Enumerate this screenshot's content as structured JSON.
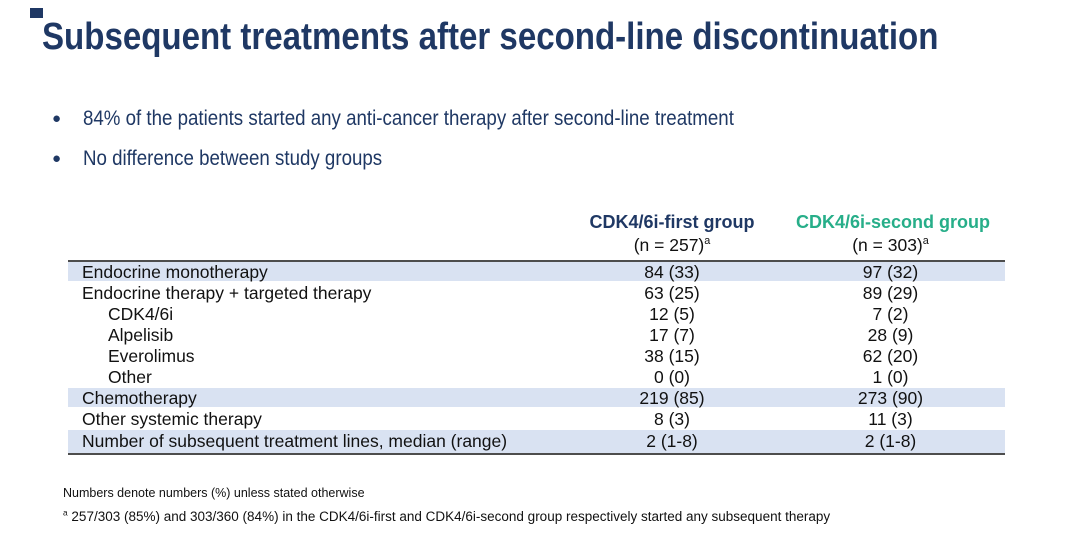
{
  "slide": {
    "title": "Subsequent treatments after second-line discontinuation",
    "bullets": [
      "84% of the patients started any anti-cancer therapy after second-line treatment",
      "No difference between study groups"
    ],
    "colors": {
      "navy": "#1F3864",
      "green": "#27AE89",
      "row_shade": "#D9E2F2",
      "table_border": "#4D4D4D"
    }
  },
  "table": {
    "columns": [
      {
        "label": "CDK4/6i-first group",
        "sublabel": "(n = 257)",
        "sup": "a"
      },
      {
        "label": "CDK4/6i-second group",
        "sublabel": "(n = 303)",
        "sup": "a"
      }
    ],
    "rows": [
      {
        "label": "Endocrine monotherapy",
        "values": [
          "84 (33)",
          "97 (32)"
        ]
      },
      {
        "label": "Endocrine therapy + targeted therapy",
        "values": [
          "63 (25)",
          "89 (29)"
        ]
      },
      {
        "label": "CDK4/6i",
        "values": [
          "12 (5)",
          "7 (2)"
        ]
      },
      {
        "label": "Alpelisib",
        "values": [
          "17 (7)",
          "28 (9)"
        ]
      },
      {
        "label": "Everolimus",
        "values": [
          "38 (15)",
          "62 (20)"
        ]
      },
      {
        "label": "Other",
        "values": [
          "0 (0)",
          "1 (0)"
        ]
      },
      {
        "label": "Chemotherapy",
        "values": [
          "219 (85)",
          "273 (90)"
        ]
      },
      {
        "label": "Other systemic therapy",
        "values": [
          "8 (3)",
          "11 (3)"
        ]
      },
      {
        "label": "Number of subsequent treatment lines, median (range)",
        "values": [
          "2 (1-8)",
          "2 (1-8)"
        ]
      }
    ]
  },
  "footnotes": {
    "general": "Numbers denote numbers (%) unless stated otherwise",
    "a_sup": "a",
    "a_text": "257/303 (85%) and 303/360 (84%) in the CDK4/6i-first and CDK4/6i-second group respectively started any subsequent therapy"
  }
}
